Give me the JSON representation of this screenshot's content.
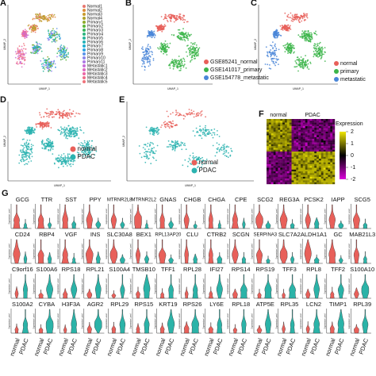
{
  "panels": {
    "A": {
      "label": "A",
      "x_label": "UMAP_1",
      "y_label": "UMAP_2",
      "legend": [
        {
          "label": "Normal1",
          "color": "#e8766f"
        },
        {
          "label": "Normal2",
          "color": "#de8c3a"
        },
        {
          "label": "Normal3",
          "color": "#c99a2e"
        },
        {
          "label": "Normal4",
          "color": "#b0a22a"
        },
        {
          "label": "Primary1",
          "color": "#8fab2a"
        },
        {
          "label": "Primary2",
          "color": "#5db53a"
        },
        {
          "label": "Primary3",
          "color": "#35b55a"
        },
        {
          "label": "Primary4",
          "color": "#2cb57e"
        },
        {
          "label": "Primary5",
          "color": "#28b59c"
        },
        {
          "label": "Primary6",
          "color": "#25b3b8"
        },
        {
          "label": "Primary7",
          "color": "#22aed0"
        },
        {
          "label": "Primary8",
          "color": "#2ba3e3"
        },
        {
          "label": "Primary9",
          "color": "#5a95ea"
        },
        {
          "label": "Primary10",
          "color": "#8a86ec"
        },
        {
          "label": "Primary11",
          "color": "#ad78e6"
        },
        {
          "label": "Metastatic1",
          "color": "#c96ed8"
        },
        {
          "label": "Metastatic2",
          "color": "#de69c2"
        },
        {
          "label": "Metastatic3",
          "color": "#eb68a6"
        },
        {
          "label": "Metastatic4",
          "color": "#ef6d8a"
        },
        {
          "label": "Metastatic5",
          "color": "#f0727a"
        }
      ]
    },
    "B": {
      "label": "B",
      "x_label": "UMAP_1",
      "y_label": "UMAP_2",
      "legend": [
        {
          "label": "GSE85241_normal",
          "color": "#e8605a"
        },
        {
          "label": "GSE141017_primary",
          "color": "#3cb54a"
        },
        {
          "label": "GSE154778_metastatic",
          "color": "#4a86d8"
        }
      ]
    },
    "C": {
      "label": "C",
      "x_label": "UMAP_1",
      "y_label": "UMAP_2",
      "legend": [
        {
          "label": "normal",
          "color": "#e8605a"
        },
        {
          "label": "primary",
          "color": "#3cb54a"
        },
        {
          "label": "metastatic",
          "color": "#4a86d8"
        }
      ]
    },
    "D": {
      "label": "D",
      "x_label": "UMAP_1",
      "y_label": "UMAP_2",
      "legend": [
        {
          "label": "normal",
          "color": "#e8605a"
        },
        {
          "label": "PDAC",
          "color": "#2bb3b0"
        }
      ]
    },
    "E": {
      "label": "E",
      "x_label": "UMAP_1",
      "y_label": "UMAP_2",
      "legend": [
        {
          "label": "normal",
          "color": "#e8605a"
        },
        {
          "label": "PDAC",
          "color": "#2bb3b0"
        }
      ]
    },
    "F": {
      "label": "F",
      "groups": [
        "normal",
        "PDAC"
      ],
      "colorbar_title": "Expression",
      "colorbar_ticks": [
        2,
        1,
        0,
        -1,
        -2
      ]
    },
    "G": {
      "label": "G",
      "y_label": "Expression Level",
      "groups": [
        "normal",
        "PDAC"
      ],
      "colors": [
        "#e8605a",
        "#2bb3a8"
      ],
      "genes": [
        [
          "GCG",
          "TTR",
          "SST",
          "PPY",
          "MTRNR2L8",
          "MTRNR2L2",
          "GNAS",
          "CHGB",
          "CHGA",
          "CPE",
          "SCG2",
          "REG3A",
          "PCSK2",
          "IAPP",
          "SCG5"
        ],
        [
          "CD24",
          "RBP4",
          "VGF",
          "INS",
          "SLC30A8",
          "BEX1",
          "RPL13AP20",
          "CLU",
          "CTRB2",
          "SCGN",
          "SERPINA3",
          "SLC7A2",
          "ALDH1A1",
          "GC",
          "MAB21L3"
        ],
        [
          "C9orf16",
          "S100A6",
          "RPS18",
          "RPL21",
          "S100A4",
          "TMSB10",
          "TFF1",
          "RPL28",
          "IFI27",
          "RPS14",
          "RPS19",
          "TFF3",
          "RPL8",
          "TFF2",
          "S100A10"
        ],
        [
          "S100A2",
          "CYBA",
          "H3F3A",
          "AGR2",
          "RPL29",
          "RPS15",
          "KRT19",
          "RPS26",
          "LY6E",
          "RPL18",
          "ATP5E",
          "RPL35",
          "LCN2",
          "TIMP1",
          "RPL39"
        ]
      ]
    }
  }
}
